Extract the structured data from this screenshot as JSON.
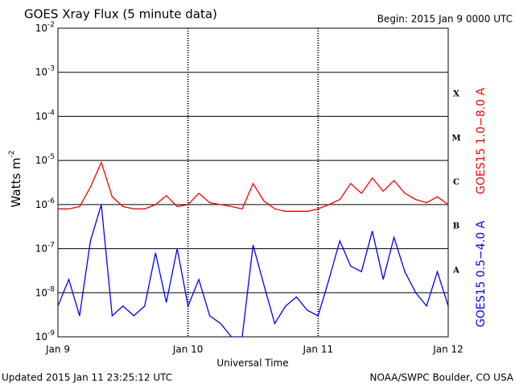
{
  "chart_data": {
    "type": "line",
    "title": "GOES Xray Flux (5 minute data)",
    "subtitle": "Begin:  2015 Jan 9 0000 UTC",
    "xlabel": "Universal Time",
    "ylabel": {
      "text": "Watts m",
      "sup": "-2"
    },
    "footer_left": "Updated 2015 Jan 11 23:25:12 UTC",
    "footer_right": "NOAA/SWPC Boulder, CO USA",
    "flare_classes": [
      "A",
      "B",
      "C",
      "M",
      "X"
    ],
    "log_y": true,
    "grid": true,
    "xlim": [
      0,
      72
    ],
    "xticks": [
      {
        "value": 0,
        "label": "Jan 9"
      },
      {
        "value": 24,
        "label": "Jan 10"
      },
      {
        "value": 48,
        "label": "Jan 11"
      },
      {
        "value": 72,
        "label": "Jan 12"
      }
    ],
    "ylim": [
      1e-09,
      0.01
    ],
    "yticks": [
      {
        "value": 1e-09,
        "label": "10-9"
      },
      {
        "value": 1e-08,
        "label": "10-8"
      },
      {
        "value": 1e-07,
        "label": "10-7"
      },
      {
        "value": 1e-06,
        "label": "10-6"
      },
      {
        "value": 1e-05,
        "label": "10-5"
      },
      {
        "value": 0.0001,
        "label": "10-4"
      },
      {
        "value": 0.001,
        "label": "10-3"
      },
      {
        "value": 0.01,
        "label": "10-2"
      }
    ],
    "x": [
      0,
      2,
      4,
      6,
      8,
      10,
      12,
      14,
      16,
      18,
      20,
      22,
      24,
      26,
      28,
      30,
      32,
      34,
      36,
      38,
      40,
      42,
      44,
      46,
      48,
      50,
      52,
      54,
      56,
      58,
      60,
      62,
      64,
      66,
      68,
      70,
      72
    ],
    "series": [
      {
        "name": "GOES15 1.0−8.0 A",
        "color": "#ff0000",
        "values": [
          8e-07,
          8e-07,
          9e-07,
          2.5e-06,
          9e-06,
          1.5e-06,
          9e-07,
          8e-07,
          8e-07,
          1e-06,
          1.6e-06,
          9e-07,
          1e-06,
          1.8e-06,
          1.1e-06,
          1e-06,
          9e-07,
          8e-07,
          3e-06,
          1.2e-06,
          8e-07,
          7e-07,
          7e-07,
          7e-07,
          8e-07,
          1e-06,
          1.3e-06,
          3e-06,
          1.8e-06,
          4e-06,
          2e-06,
          3.5e-06,
          1.8e-06,
          1.3e-06,
          1.1e-06,
          1.5e-06,
          1e-06
        ]
      },
      {
        "name": "GOES15 0.5−4.0 A",
        "color": "#0000ff",
        "values": [
          5e-09,
          2e-08,
          3e-09,
          1.5e-07,
          1e-06,
          3e-09,
          5e-09,
          3e-09,
          5e-09,
          8e-08,
          6e-09,
          1e-07,
          5e-09,
          2e-08,
          3e-09,
          2e-09,
          1e-09,
          1e-09,
          1.2e-07,
          1.5e-08,
          2e-09,
          5e-09,
          8e-09,
          4e-09,
          3e-09,
          2e-08,
          1.5e-07,
          4e-08,
          3e-08,
          2.5e-07,
          2e-08,
          1.8e-07,
          3e-08,
          1e-08,
          5e-09,
          3e-08,
          5e-09
        ]
      }
    ]
  }
}
